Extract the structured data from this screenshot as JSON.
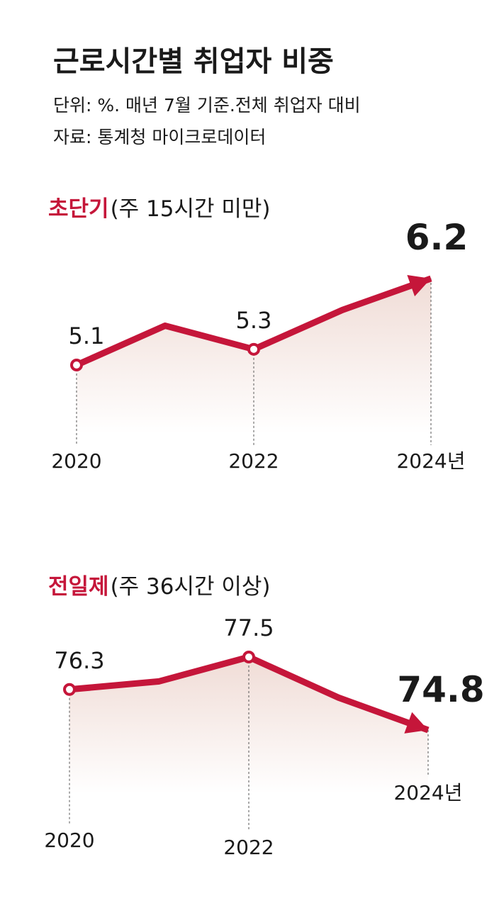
{
  "header": {
    "title": "근로시간별 취업자 비중",
    "subtitle": "단위: %. 매년 7월 기준.전체 취업자 대비",
    "source": "자료: 통계청 마이크로데이터"
  },
  "chart_data": [
    {
      "type": "line",
      "title": "초단기",
      "subtitle": "(주 15시간 미만)",
      "color": "#c5163a",
      "categories": [
        "2020",
        null,
        "2022",
        null,
        "2024년"
      ],
      "values": [
        5.1,
        5.6,
        5.3,
        5.8,
        6.2
      ],
      "value_labels": [
        "5.1",
        null,
        "5.3",
        null,
        "6.2"
      ]
    },
    {
      "type": "line",
      "title": "전일제",
      "subtitle": "(주 36시간 이상)",
      "color": "#c5163a",
      "categories": [
        "2020",
        null,
        "2022",
        null,
        "2024년"
      ],
      "values": [
        76.3,
        76.6,
        77.5,
        76.0,
        74.8
      ],
      "value_labels": [
        "76.3",
        null,
        "77.5",
        null,
        "74.8"
      ]
    }
  ]
}
